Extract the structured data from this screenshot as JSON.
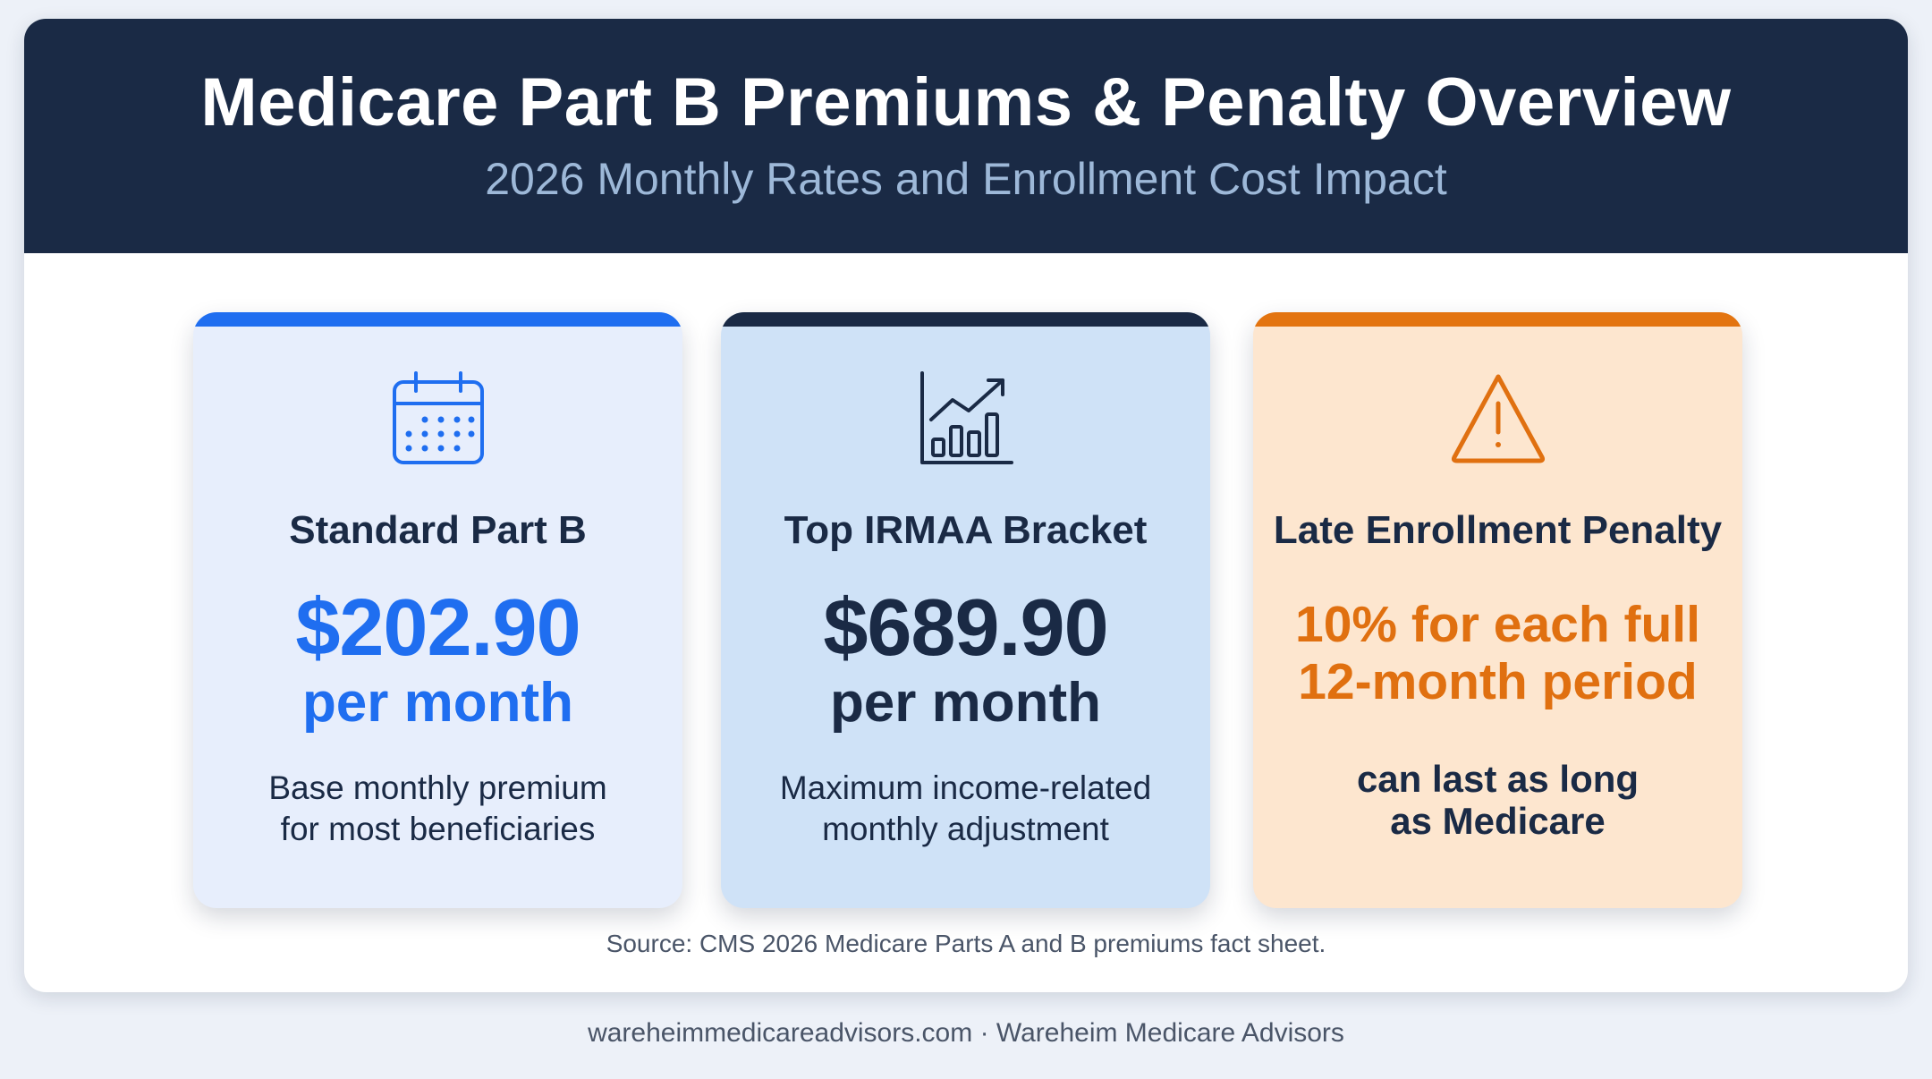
{
  "header": {
    "title": "Medicare Part B Premiums & Penalty Overview",
    "subtitle": "2026 Monthly Rates and Enrollment Cost Impact"
  },
  "cards": [
    {
      "icon": "calendar-icon",
      "title": "Standard Part B",
      "amount": "$202.90",
      "unit": "per month",
      "description": "Base monthly premium\nfor most beneficiaries",
      "accent_color": "#1f6ef0",
      "background_color": "#e7eefc"
    },
    {
      "icon": "bar-chart-trend-icon",
      "title": "Top IRMAA Bracket",
      "amount": "$689.90",
      "unit": "per month",
      "description": "Maximum income-related\nmonthly adjustment",
      "accent_color": "#1a2a45",
      "background_color": "#cfe2f7"
    },
    {
      "icon": "warning-triangle-icon",
      "title": "Late Enrollment Penalty",
      "penalty": "10% for each full\n12-month period",
      "duration": "can last as long\nas Medicare",
      "accent_color": "#e37410",
      "background_color": "#fde6cf"
    }
  ],
  "source": "Source: CMS 2026 Medicare Parts A and B premiums fact sheet.",
  "footer": "wareheimmedicareadvisors.com · Wareheim Medicare Advisors",
  "colors": {
    "header_background": "#1a2a45",
    "page_background": "#edf1f8"
  }
}
